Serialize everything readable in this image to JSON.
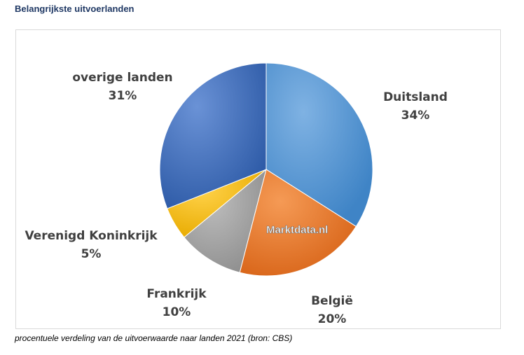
{
  "page": {
    "title": "Belangrijkste uitvoerlanden",
    "caption": "procentuele verdeling van de uitvoerwaarde naar landen 2021 (bron: CBS)",
    "watermark": "Marktdata.nl"
  },
  "chart_data": {
    "type": "pie",
    "title": "",
    "start_angle_deg": 0,
    "direction": "clockwise",
    "legend": "none (labels next to slices)",
    "slices": [
      {
        "label": "Duitsland",
        "value": 34,
        "value_label": "34%",
        "color": "#5b9bd5"
      },
      {
        "label": "België",
        "value": 20,
        "value_label": "20%",
        "color": "#ed7d31"
      },
      {
        "label": "Frankrijk",
        "value": 10,
        "value_label": "10%",
        "color": "#a5a5a5"
      },
      {
        "label": "Verenigd Koninkrijk",
        "value": 5,
        "value_label": "5%",
        "color": "#ffc000"
      },
      {
        "label": "overige landen",
        "value": 31,
        "value_label": "31%",
        "color": "#4472c4"
      }
    ]
  }
}
